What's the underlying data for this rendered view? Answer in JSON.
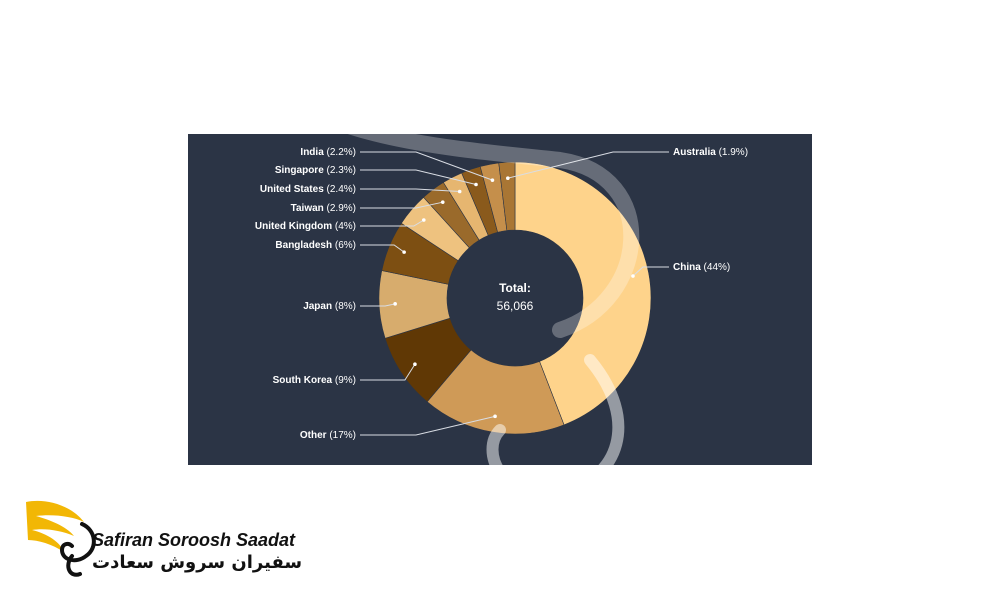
{
  "chart_data": {
    "type": "pie",
    "center": {
      "title": "Total:",
      "value": "56,066"
    },
    "slices": [
      {
        "label": "China",
        "value": 44,
        "pct_text": "(44%)",
        "color": "#fed38b"
      },
      {
        "label": "Other",
        "value": 17,
        "pct_text": "(17%)",
        "color": "#cf9a57"
      },
      {
        "label": "South Korea",
        "value": 9,
        "pct_text": "(9%)",
        "color": "#603805"
      },
      {
        "label": "Japan",
        "value": 8,
        "pct_text": "(8%)",
        "color": "#d7ac6d"
      },
      {
        "label": "Bangladesh",
        "value": 6,
        "pct_text": "(6%)",
        "color": "#7d4f12"
      },
      {
        "label": "United Kingdom",
        "value": 4,
        "pct_text": "(4%)",
        "color": "#eec27f"
      },
      {
        "label": "Taiwan",
        "value": 2.9,
        "pct_text": "(2.9%)",
        "color": "#9a6a2b"
      },
      {
        "label": "United States",
        "value": 2.4,
        "pct_text": "(2.4%)",
        "color": "#e6b670"
      },
      {
        "label": "Singapore",
        "value": 2.3,
        "pct_text": "(2.3%)",
        "color": "#8a5a1c"
      },
      {
        "label": "India",
        "value": 2.2,
        "pct_text": "(2.2%)",
        "color": "#c58f4b"
      },
      {
        "label": "Australia",
        "value": 1.9,
        "pct_text": "(1.9%)",
        "color": "#a97634"
      }
    ]
  },
  "logo": {
    "name_en": "Safiran Soroosh Saadat",
    "name_fa": "سفیران سروش سعادت",
    "colors": {
      "wing": "#f2b705",
      "text": "#111111"
    }
  }
}
